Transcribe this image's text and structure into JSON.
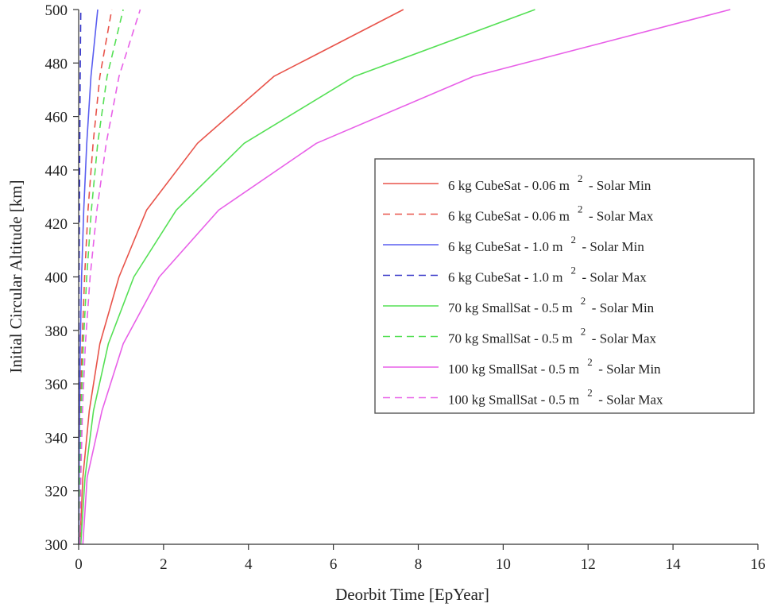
{
  "chart_data": {
    "type": "line",
    "title": "",
    "xlabel": "Deorbit Time [EpYear]",
    "ylabel": "Initial Circular Altitude [km]",
    "xlim": [
      0,
      16
    ],
    "ylim": [
      300,
      500
    ],
    "xticks": [
      0,
      2,
      4,
      6,
      8,
      10,
      12,
      14,
      16
    ],
    "yticks": [
      300,
      320,
      340,
      360,
      380,
      400,
      420,
      440,
      460,
      480,
      500
    ],
    "grid": false,
    "legend_position": "right",
    "y": [
      300,
      325,
      350,
      375,
      400,
      425,
      450,
      475,
      500
    ],
    "series": [
      {
        "name": "6 kg CubeSat - 0.06 m",
        "sup": "2",
        "condition": "- Solar Min",
        "color": "#e8534a",
        "dash": "solid",
        "x": [
          0.03,
          0.1,
          0.25,
          0.5,
          0.95,
          1.6,
          2.8,
          4.6,
          7.65
        ]
      },
      {
        "name": "6 kg CubeSat - 0.06 m",
        "sup": "2",
        "condition": "- Solar Max",
        "color": "#e8534a",
        "dash": "dashed",
        "x": [
          0.01,
          0.02,
          0.04,
          0.08,
          0.14,
          0.22,
          0.34,
          0.5,
          0.78
        ]
      },
      {
        "name": "6 kg CubeSat - 1.0 m",
        "sup": "2",
        "condition": "- Solar Min",
        "color": "#5a5ef0",
        "dash": "solid",
        "x": [
          0.005,
          0.01,
          0.02,
          0.04,
          0.07,
          0.12,
          0.19,
          0.29,
          0.45
        ]
      },
      {
        "name": "6 kg CubeSat - 1.0 m",
        "sup": "2",
        "condition": "- Solar Max",
        "color": "#3535c8",
        "dash": "dashed",
        "x": [
          0.002,
          0.003,
          0.005,
          0.008,
          0.012,
          0.018,
          0.026,
          0.035,
          0.05
        ]
      },
      {
        "name": "70 kg SmallSat - 0.5 m",
        "sup": "2",
        "condition": "- Solar Min",
        "color": "#55e055",
        "dash": "solid",
        "x": [
          0.05,
          0.15,
          0.35,
          0.7,
          1.3,
          2.3,
          3.9,
          6.5,
          10.75
        ]
      },
      {
        "name": "70 kg SmallSat - 0.5 m",
        "sup": "2",
        "condition": "- Solar Max",
        "color": "#55e055",
        "dash": "dashed",
        "x": [
          0.02,
          0.03,
          0.06,
          0.11,
          0.19,
          0.3,
          0.45,
          0.67,
          1.05
        ]
      },
      {
        "name": "100 kg SmallSat - 0.5 m",
        "sup": "2",
        "condition": "- Solar Min",
        "color": "#e860e8",
        "dash": "solid",
        "x": [
          0.1,
          0.2,
          0.55,
          1.05,
          1.9,
          3.3,
          5.6,
          9.3,
          15.35
        ]
      },
      {
        "name": "100 kg SmallSat - 0.5 m",
        "sup": "2",
        "condition": "- Solar Max",
        "color": "#e860e8",
        "dash": "dashed",
        "x": [
          0.03,
          0.05,
          0.09,
          0.16,
          0.27,
          0.43,
          0.65,
          0.95,
          1.45
        ]
      }
    ]
  }
}
